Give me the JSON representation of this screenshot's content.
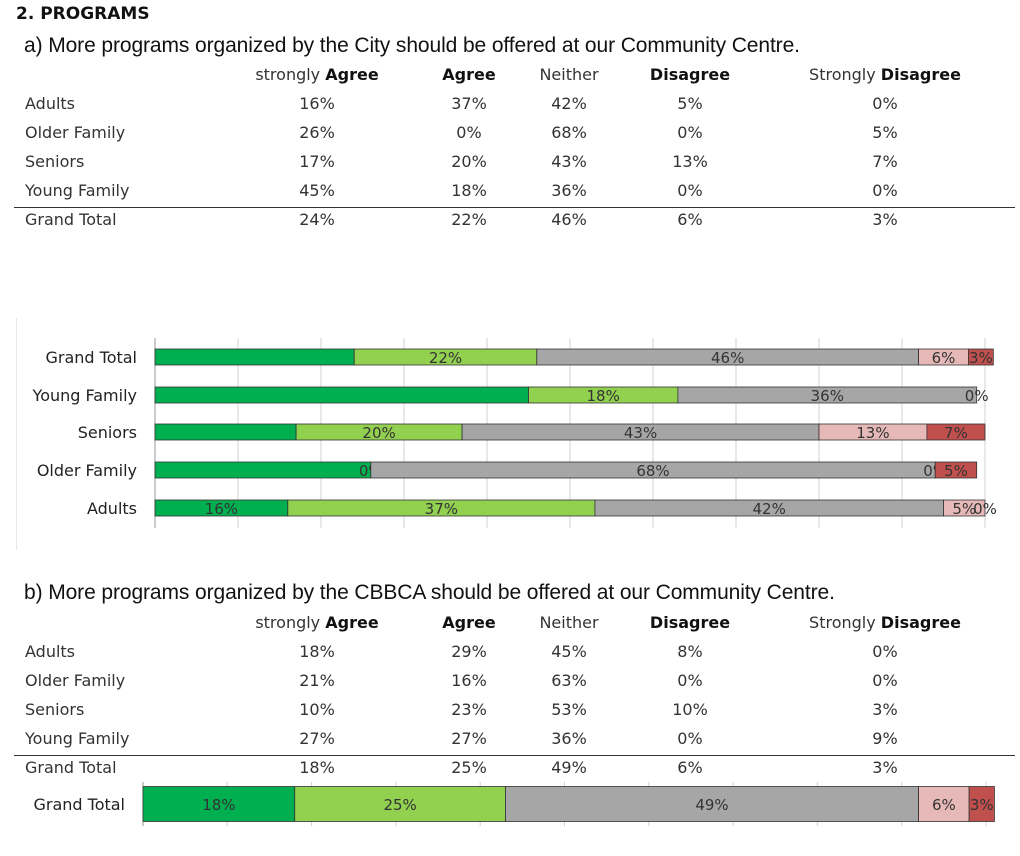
{
  "section": {
    "heading": "2. PROGRAMS"
  },
  "columns": [
    {
      "light": "strongly ",
      "bold": "Agree"
    },
    {
      "light": "",
      "bold": "Agree"
    },
    {
      "light": "Neither",
      "bold": ""
    },
    {
      "light": "",
      "bold": "Disagree"
    },
    {
      "light": "Strongly ",
      "bold": "Disagree"
    }
  ],
  "colors": {
    "strongly_agree": "#00b050",
    "agree": "#92d050",
    "neither": "#a6a6a6",
    "disagree": "#e6b9b8",
    "strongly_disagree": "#c0504d"
  },
  "question_a": {
    "title": "a) More programs organized by the City should be offered at our Community Centre.",
    "rows": [
      {
        "label": "Adults",
        "values": [
          "16%",
          "37%",
          "42%",
          "5%",
          "0%"
        ]
      },
      {
        "label": "Older Family",
        "values": [
          "26%",
          "0%",
          "68%",
          "0%",
          "5%"
        ]
      },
      {
        "label": "Seniors",
        "values": [
          "17%",
          "20%",
          "43%",
          "13%",
          "7%"
        ]
      },
      {
        "label": "Young Family",
        "values": [
          "45%",
          "18%",
          "36%",
          "0%",
          "0%"
        ]
      }
    ],
    "total": {
      "label": "Grand Total",
      "values": [
        "24%",
        "22%",
        "46%",
        "6%",
        "3%"
      ]
    }
  },
  "question_b": {
    "title": "b) More programs organized by the CBBCA should be offered at our Community Centre.",
    "rows": [
      {
        "label": "Adults",
        "values": [
          "18%",
          "29%",
          "45%",
          "8%",
          "0%"
        ]
      },
      {
        "label": "Older Family",
        "values": [
          "21%",
          "16%",
          "63%",
          "0%",
          "0%"
        ]
      },
      {
        "label": "Seniors",
        "values": [
          "10%",
          "23%",
          "53%",
          "10%",
          "3%"
        ]
      },
      {
        "label": "Young Family",
        "values": [
          "27%",
          "27%",
          "36%",
          "0%",
          "9%"
        ]
      }
    ],
    "total": {
      "label": "Grand Total",
      "values": [
        "18%",
        "25%",
        "49%",
        "6%",
        "3%"
      ]
    }
  },
  "chart_data": [
    {
      "type": "bar",
      "orientation": "horizontal",
      "stacked": true,
      "title": "",
      "xlabel": "",
      "ylabel": "",
      "xlim": [
        0,
        100
      ],
      "grid": true,
      "legend": "none",
      "categories": [
        "Grand Total",
        "Young Family",
        "Seniors",
        "Older Family",
        "Adults"
      ],
      "series": [
        {
          "values": [
            24,
            45,
            17,
            26,
            16
          ],
          "labels": [
            "",
            "",
            "",
            "",
            "16%"
          ]
        },
        {
          "values": [
            22,
            18,
            20,
            0,
            37
          ],
          "labels": [
            "22%",
            "18%",
            "20%",
            "0%",
            "37%"
          ]
        },
        {
          "values": [
            46,
            36,
            43,
            68,
            42
          ],
          "labels": [
            "46%",
            "36%",
            "43%",
            "68%",
            "42%"
          ]
        },
        {
          "values": [
            6,
            0,
            13,
            0,
            5
          ],
          "labels": [
            "6%",
            "",
            "13%",
            "0%",
            "5%"
          ]
        },
        {
          "values": [
            3,
            0,
            7,
            5,
            0
          ],
          "labels": [
            "3%",
            "0%",
            "7%",
            "5%",
            "0%"
          ]
        }
      ]
    },
    {
      "type": "bar",
      "orientation": "horizontal",
      "stacked": true,
      "title": "",
      "xlabel": "",
      "ylabel": "",
      "xlim": [
        0,
        100
      ],
      "grid": true,
      "legend": "none",
      "categories": [
        "Grand Total"
      ],
      "series": [
        {
          "values": [
            18
          ],
          "labels": [
            "18%"
          ]
        },
        {
          "values": [
            25
          ],
          "labels": [
            "25%"
          ]
        },
        {
          "values": [
            49
          ],
          "labels": [
            "49%"
          ]
        },
        {
          "values": [
            6
          ],
          "labels": [
            "6%"
          ]
        },
        {
          "values": [
            3
          ],
          "labels": [
            "3%"
          ]
        }
      ]
    }
  ]
}
